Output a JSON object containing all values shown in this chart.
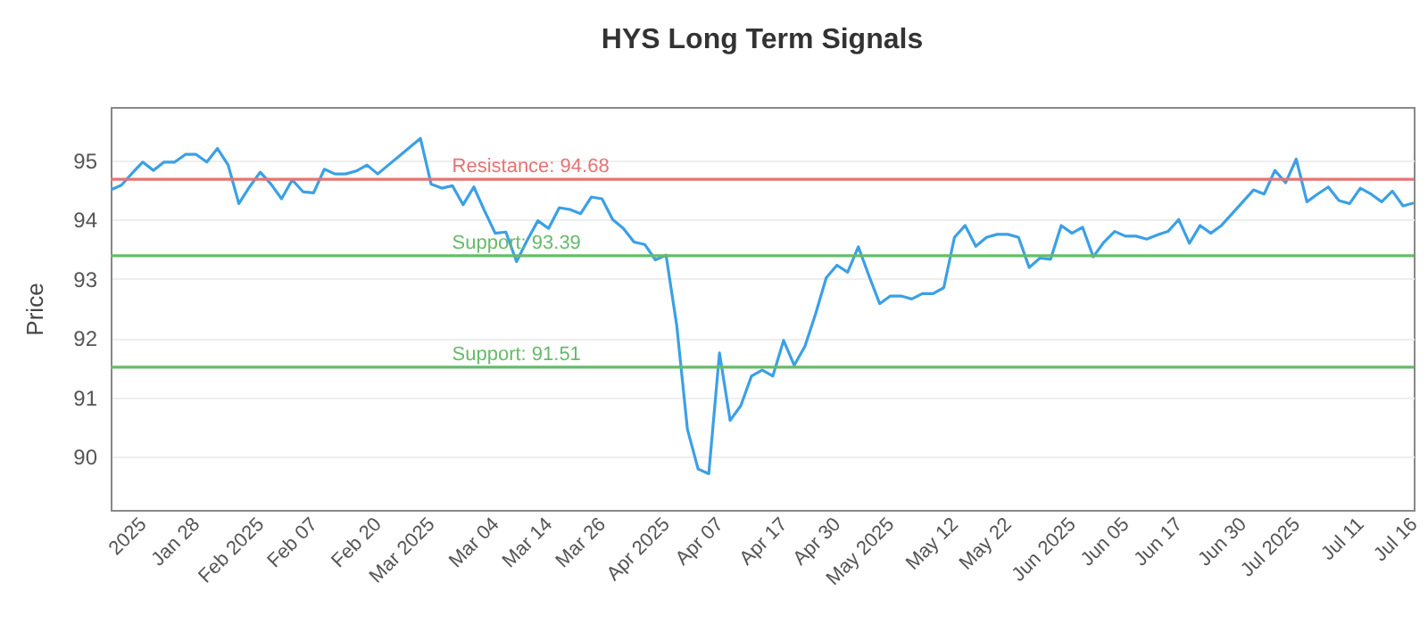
{
  "chart_data": {
    "type": "line",
    "title": "HYS Long Term Signals",
    "ylabel": "Price",
    "categories": [
      null,
      null,
      null,
      "2025",
      null,
      null,
      null,
      null,
      "Jan 28",
      null,
      null,
      null,
      null,
      null,
      "Feb 2025",
      null,
      null,
      null,
      null,
      "Feb 07",
      null,
      null,
      null,
      null,
      null,
      "Feb 20",
      null,
      null,
      null,
      null,
      "Mar 2025",
      null,
      null,
      null,
      null,
      null,
      "Mar 04",
      null,
      null,
      null,
      null,
      "Mar 14",
      null,
      null,
      null,
      null,
      "Mar 26",
      null,
      null,
      null,
      null,
      null,
      "Apr 2025",
      null,
      null,
      null,
      null,
      "Apr 07",
      null,
      null,
      null,
      null,
      null,
      "Apr 17",
      null,
      null,
      null,
      null,
      "Apr 30",
      null,
      null,
      null,
      null,
      "May 2025",
      null,
      null,
      null,
      null,
      null,
      "May 12",
      null,
      null,
      null,
      null,
      "May 22",
      null,
      null,
      null,
      null,
      null,
      "Jun 2025",
      null,
      null,
      null,
      null,
      "Jun 05",
      null,
      null,
      null,
      null,
      "Jun 17",
      null,
      null,
      null,
      null,
      null,
      "Jun 30",
      null,
      null,
      null,
      null,
      "Jul 2025",
      null,
      null,
      null,
      null,
      null,
      "Jul 11",
      null,
      null,
      null,
      null,
      "Jul 16"
    ],
    "series": [
      {
        "color": "#3ba0e6",
        "values": [
          94.5,
          94.58,
          94.78,
          94.97,
          94.83,
          94.97,
          94.97,
          95.1,
          95.1,
          94.97,
          95.2,
          94.92,
          94.27,
          94.55,
          94.8,
          94.6,
          94.35,
          94.67,
          94.47,
          94.45,
          94.85,
          94.77,
          94.77,
          94.82,
          94.92,
          94.77,
          94.92,
          95.07,
          95.22,
          95.37,
          94.6,
          94.53,
          94.57,
          94.25,
          94.55,
          94.15,
          93.77,
          93.79,
          93.29,
          93.65,
          93.98,
          93.85,
          94.2,
          94.17,
          94.1,
          94.38,
          94.35,
          94.0,
          93.85,
          93.62,
          93.58,
          93.32,
          93.4,
          92.21,
          90.46,
          89.79,
          89.71,
          91.75,
          90.61,
          90.86,
          91.36,
          91.46,
          91.36,
          91.96,
          91.54,
          91.86,
          92.41,
          93.02,
          93.23,
          93.11,
          93.54,
          93.05,
          92.58,
          92.71,
          92.71,
          92.66,
          92.75,
          92.75,
          92.85,
          93.7,
          93.9,
          93.55,
          93.7,
          93.75,
          93.75,
          93.7,
          93.19,
          93.35,
          93.33,
          93.9,
          93.77,
          93.87,
          93.37,
          93.62,
          93.8,
          93.72,
          93.72,
          93.67,
          93.74,
          93.8,
          94.0,
          93.6,
          93.9,
          93.77,
          93.9,
          94.1,
          94.3,
          94.5,
          94.43,
          94.83,
          94.62,
          95.02,
          94.3,
          94.43,
          94.55,
          94.32,
          94.27,
          94.53,
          94.43,
          94.3,
          94.48,
          94.23,
          94.28
        ]
      }
    ],
    "ylim": [
      89.1,
      95.9
    ],
    "yticks": [
      90,
      91,
      92,
      93,
      94,
      95
    ],
    "grid": "y",
    "ref_lines": [
      {
        "axis": "y",
        "value": 94.68,
        "label": "Resistance: 94.68",
        "color": "#e57373"
      },
      {
        "axis": "y",
        "value": 93.39,
        "label": "Support: 93.39",
        "color": "#66bb6a"
      },
      {
        "axis": "y",
        "value": 91.51,
        "label": "Support: 91.51",
        "color": "#66bb6a"
      }
    ]
  }
}
